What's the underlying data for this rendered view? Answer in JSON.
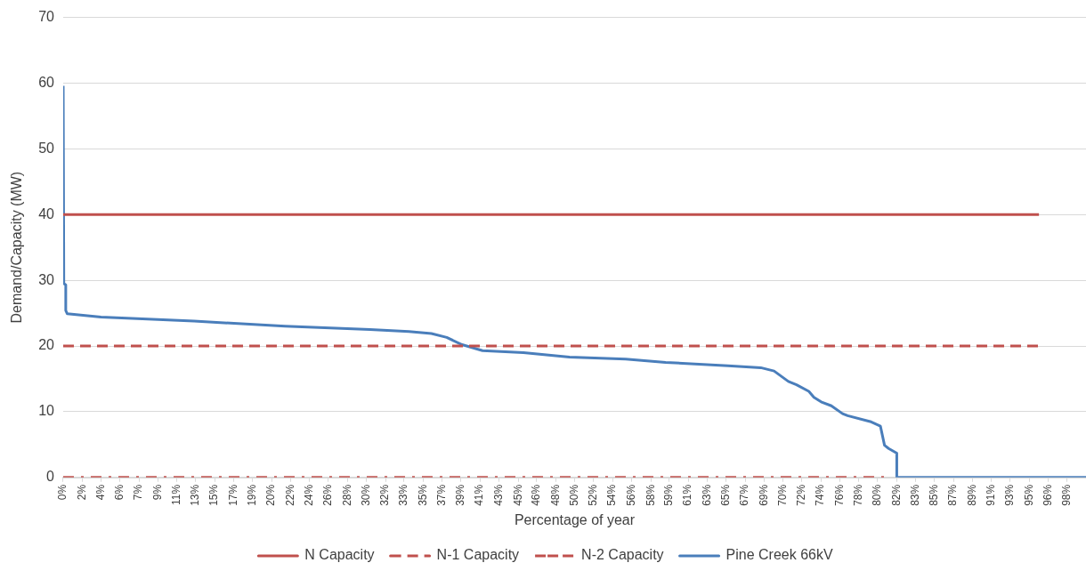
{
  "chart_data": {
    "type": "line",
    "xlabel": "Percentage of year",
    "ylabel": "Demand/Capacity (MW)",
    "xlim": [
      0,
      100
    ],
    "ylim": [
      0,
      70
    ],
    "yticks": [
      0,
      10,
      20,
      30,
      40,
      50,
      60,
      70
    ],
    "xticks": [
      {
        "value": 0,
        "label": "0%"
      },
      {
        "value": 1.85,
        "label": "2%"
      },
      {
        "value": 3.7,
        "label": "4%"
      },
      {
        "value": 5.56,
        "label": "6%"
      },
      {
        "value": 7.41,
        "label": "7%"
      },
      {
        "value": 9.26,
        "label": "9%"
      },
      {
        "value": 11.11,
        "label": "11%"
      },
      {
        "value": 12.96,
        "label": "13%"
      },
      {
        "value": 14.81,
        "label": "15%"
      },
      {
        "value": 16.67,
        "label": "17%"
      },
      {
        "value": 18.52,
        "label": "19%"
      },
      {
        "value": 20.37,
        "label": "20%"
      },
      {
        "value": 22.22,
        "label": "22%"
      },
      {
        "value": 24.07,
        "label": "24%"
      },
      {
        "value": 25.93,
        "label": "26%"
      },
      {
        "value": 27.78,
        "label": "28%"
      },
      {
        "value": 29.63,
        "label": "30%"
      },
      {
        "value": 31.51,
        "label": "32%"
      },
      {
        "value": 33.33,
        "label": "33%"
      },
      {
        "value": 35.19,
        "label": "35%"
      },
      {
        "value": 37.04,
        "label": "37%"
      },
      {
        "value": 38.89,
        "label": "39%"
      },
      {
        "value": 40.74,
        "label": "41%"
      },
      {
        "value": 42.59,
        "label": "43%"
      },
      {
        "value": 44.51,
        "label": "45%"
      },
      {
        "value": 46.3,
        "label": "46%"
      },
      {
        "value": 48.15,
        "label": "48%"
      },
      {
        "value": 50.0,
        "label": "50%"
      },
      {
        "value": 51.85,
        "label": "52%"
      },
      {
        "value": 53.7,
        "label": "54%"
      },
      {
        "value": 55.56,
        "label": "56%"
      },
      {
        "value": 57.51,
        "label": "58%"
      },
      {
        "value": 59.26,
        "label": "59%"
      },
      {
        "value": 61.11,
        "label": "61%"
      },
      {
        "value": 62.96,
        "label": "63%"
      },
      {
        "value": 64.81,
        "label": "65%"
      },
      {
        "value": 66.67,
        "label": "67%"
      },
      {
        "value": 68.52,
        "label": "69%"
      },
      {
        "value": 70.37,
        "label": "70%"
      },
      {
        "value": 72.22,
        "label": "72%"
      },
      {
        "value": 74.07,
        "label": "74%"
      },
      {
        "value": 75.93,
        "label": "76%"
      },
      {
        "value": 77.78,
        "label": "78%"
      },
      {
        "value": 79.63,
        "label": "80%"
      },
      {
        "value": 81.51,
        "label": "82%"
      },
      {
        "value": 83.33,
        "label": "83%"
      },
      {
        "value": 85.19,
        "label": "85%"
      },
      {
        "value": 87.04,
        "label": "87%"
      },
      {
        "value": 88.89,
        "label": "89%"
      },
      {
        "value": 90.74,
        "label": "91%"
      },
      {
        "value": 92.59,
        "label": "93%"
      },
      {
        "value": 94.51,
        "label": "95%"
      },
      {
        "value": 96.3,
        "label": "96%"
      },
      {
        "value": 98.15,
        "label": "98%"
      }
    ],
    "grid": "y",
    "legend": "bottom",
    "marker": "none",
    "series": [
      {
        "name": "N Capacity",
        "color": "#c0504d",
        "line_style": "solid",
        "x": [
          0,
          95.4
        ],
        "values": [
          40,
          40
        ]
      },
      {
        "name": "N-1 Capacity",
        "color": "#c0504d",
        "line_style": "dashed",
        "x": [
          0,
          95.4
        ],
        "values": [
          20,
          20
        ]
      },
      {
        "name": "N-2 Capacity",
        "color": "#c0504d",
        "line_style": "dashdot",
        "x": [
          0,
          80.3
        ],
        "values": [
          0,
          0
        ]
      },
      {
        "name": "Pine Creek 66kV",
        "color": "#4a7ebb",
        "line_style": "solid",
        "x": [
          0,
          0.06,
          0.25,
          0.25,
          0.4,
          3.7,
          12.8,
          21.7,
          30,
          33.8,
          36,
          37.5,
          39,
          41,
          45,
          49.5,
          55,
          58.9,
          65,
          68.2,
          69.5,
          70.9,
          71.7,
          72.9,
          73.4,
          74.1,
          75.1,
          76.2,
          76.7,
          78.9,
          79.9,
          80.3,
          80.7,
          81.5,
          81.5,
          100
        ],
        "values": [
          59.6,
          29.5,
          29.3,
          25.4,
          24.9,
          24.4,
          23.8,
          23.0,
          22.5,
          22.2,
          21.9,
          21.3,
          20.2,
          19.3,
          19.0,
          18.3,
          18.0,
          17.5,
          17.0,
          16.7,
          16.2,
          14.6,
          14.1,
          13.1,
          12.2,
          11.5,
          10.9,
          9.7,
          9.4,
          8.5,
          7.8,
          4.9,
          4.4,
          3.7,
          0,
          0
        ]
      }
    ]
  }
}
